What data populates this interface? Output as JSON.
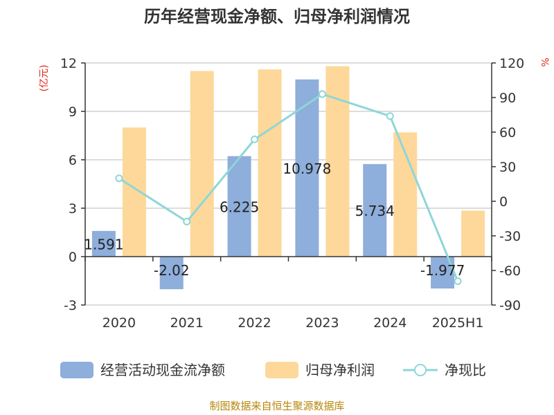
{
  "chart_data": {
    "type": "bar",
    "title": "历年经营现金净额、归母净利润情况",
    "categories": [
      "2020",
      "2021",
      "2022",
      "2023",
      "2024",
      "2025H1"
    ],
    "left_axis": {
      "unit": "(亿元)",
      "ylim": [
        -3,
        12
      ],
      "ticks": [
        "12",
        "9",
        "6",
        "3",
        "0",
        "-3"
      ]
    },
    "right_axis": {
      "unit": "%",
      "ylim": [
        -90,
        120
      ],
      "ticks": [
        "120",
        "90",
        "60",
        "30",
        "0",
        "-30",
        "-60",
        "-90"
      ]
    },
    "series": [
      {
        "name": "经营活动现金流净额",
        "type": "bar",
        "axis": "left",
        "color": "#8eaedb",
        "values": [
          1.591,
          -2.02,
          6.225,
          10.978,
          5.734,
          -1.977
        ],
        "labels": [
          "1.591",
          "-2.02",
          "6.225",
          "10.978",
          "5.734",
          "-1.977"
        ]
      },
      {
        "name": "归母净利润",
        "type": "bar",
        "axis": "left",
        "color": "#fdd89a",
        "values": [
          8.0,
          11.5,
          11.6,
          11.8,
          7.7,
          2.85
        ]
      },
      {
        "name": "净现比",
        "type": "line",
        "axis": "right",
        "color": "#8ed6d8",
        "values": [
          19.9,
          -17.6,
          53.7,
          93.0,
          73.9,
          -69.4
        ]
      }
    ],
    "grid": true,
    "legend_position": "bottom"
  },
  "source": "制图数据来自恒生聚源数据库"
}
